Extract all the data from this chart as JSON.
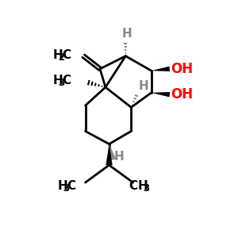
{
  "bg": "#ffffff",
  "bc": "#000000",
  "gc": "#888888",
  "ohc": "#ff0000",
  "lw": 2.0,
  "figsize": [
    3.0,
    3.0
  ],
  "dpi": 100,
  "xlim": [
    0,
    10
  ],
  "ylim": [
    0,
    10
  ]
}
